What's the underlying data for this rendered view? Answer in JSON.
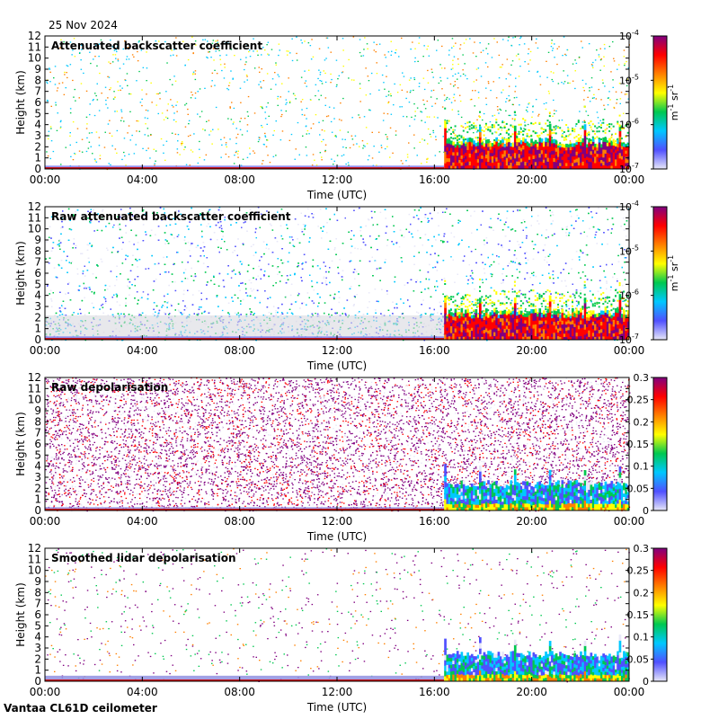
{
  "header": {
    "date": "25 Nov 2024"
  },
  "footer": {
    "station": "Vantaa CL61D ceilometer"
  },
  "colors": {
    "background": "#ffffff",
    "rainbow": [
      "#e8e8f8",
      "#5050ff",
      "#00c8ff",
      "#00c850",
      "#ffff00",
      "#ff8000",
      "#ff0000",
      "#800080"
    ]
  },
  "chart_data": [
    {
      "type": "heatmap",
      "title": "Attenuated backscatter coefficient",
      "xlabel": "Time (UTC)",
      "ylabel": "Height (km)",
      "xticks": [
        "00:00",
        "04:00",
        "08:00",
        "12:00",
        "16:00",
        "20:00",
        "00:00"
      ],
      "xlim_hours": [
        0,
        24
      ],
      "ylim": [
        0,
        12
      ],
      "yticks": [
        "0",
        "1",
        "2",
        "3",
        "4",
        "5",
        "6",
        "7",
        "8",
        "9",
        "10",
        "11",
        "12"
      ],
      "colorbar": {
        "scale": "log",
        "ticks": [
          {
            "base": "10",
            "exp": "-7",
            "frac": 0
          },
          {
            "base": "10",
            "exp": "-6",
            "frac": 0.3333
          },
          {
            "base": "10",
            "exp": "-5",
            "frac": 0.6667
          },
          {
            "base": "10",
            "exp": "-4",
            "frac": 1
          }
        ],
        "unit": {
          "m": "m",
          "m_exp": "-1",
          "sr": "sr",
          "sr_exp": "-1"
        }
      },
      "field": {
        "cloud_start_hour": 16.4,
        "cloud_top_km": 2.6,
        "noise": "sparse",
        "surface_layer_km": 0.3
      }
    },
    {
      "type": "heatmap",
      "title": "Raw attenuated backscatter coefficient",
      "xlabel": "Time (UTC)",
      "ylabel": "Height (km)",
      "xticks": [
        "00:00",
        "04:00",
        "08:00",
        "12:00",
        "16:00",
        "20:00",
        "00:00"
      ],
      "xlim_hours": [
        0,
        24
      ],
      "ylim": [
        0,
        12
      ],
      "yticks": [
        "0",
        "1",
        "2",
        "3",
        "4",
        "5",
        "6",
        "7",
        "8",
        "9",
        "10",
        "11",
        "12"
      ],
      "colorbar": {
        "scale": "log",
        "ticks": [
          {
            "base": "10",
            "exp": "-7",
            "frac": 0
          },
          {
            "base": "10",
            "exp": "-6",
            "frac": 0.3333
          },
          {
            "base": "10",
            "exp": "-5",
            "frac": 0.6667
          },
          {
            "base": "10",
            "exp": "-4",
            "frac": 1
          }
        ],
        "unit": {
          "m": "m",
          "m_exp": "-1",
          "sr": "sr",
          "sr_exp": "-1"
        }
      },
      "field": {
        "cloud_start_hour": 16.4,
        "cloud_top_km": 2.6,
        "noise": "dense-backscatter",
        "surface_layer_km": 0.3
      }
    },
    {
      "type": "heatmap",
      "title": "Raw depolarisation",
      "xlabel": "Time (UTC)",
      "ylabel": "Height (km)",
      "xticks": [
        "00:00",
        "04:00",
        "08:00",
        "12:00",
        "16:00",
        "20:00",
        "00:00"
      ],
      "xlim_hours": [
        0,
        24
      ],
      "ylim": [
        0,
        12
      ],
      "yticks": [
        "0",
        "1",
        "2",
        "3",
        "4",
        "5",
        "6",
        "7",
        "8",
        "9",
        "10",
        "11",
        "12"
      ],
      "colorbar": {
        "scale": "linear",
        "range": [
          0,
          0.3
        ],
        "ticks": [
          {
            "label": "0",
            "value": 0
          },
          {
            "label": "0.05",
            "value": 0.05
          },
          {
            "label": "0.1",
            "value": 0.1
          },
          {
            "label": "0.15",
            "value": 0.15
          },
          {
            "label": "0.2",
            "value": 0.2
          },
          {
            "label": "0.25",
            "value": 0.25
          },
          {
            "label": "0.3",
            "value": 0.3
          }
        ]
      },
      "field": {
        "cloud_start_hour": 16.4,
        "cloud_top_km": 2.5,
        "noise": "dense-depol",
        "surface_layer_km": 0.3
      }
    },
    {
      "type": "heatmap",
      "title": "Smoothed lidar depolarisation",
      "xlabel": "Time (UTC)",
      "ylabel": "Height (km)",
      "xticks": [
        "00:00",
        "04:00",
        "08:00",
        "12:00",
        "16:00",
        "20:00",
        "00:00"
      ],
      "xlim_hours": [
        0,
        24
      ],
      "ylim": [
        0,
        12
      ],
      "yticks": [
        "0",
        "1",
        "2",
        "3",
        "4",
        "5",
        "6",
        "7",
        "8",
        "9",
        "10",
        "11",
        "12"
      ],
      "colorbar": {
        "scale": "linear",
        "range": [
          0,
          0.3
        ],
        "ticks": [
          {
            "label": "0",
            "value": 0
          },
          {
            "label": "0.05",
            "value": 0.05
          },
          {
            "label": "0.1",
            "value": 0.1
          },
          {
            "label": "0.15",
            "value": 0.15
          },
          {
            "label": "0.2",
            "value": 0.2
          },
          {
            "label": "0.25",
            "value": 0.25
          },
          {
            "label": "0.3",
            "value": 0.3
          }
        ]
      },
      "field": {
        "cloud_start_hour": 16.4,
        "cloud_top_km": 2.5,
        "noise": "sparse-depol",
        "surface_layer_km": 0.5
      }
    }
  ]
}
